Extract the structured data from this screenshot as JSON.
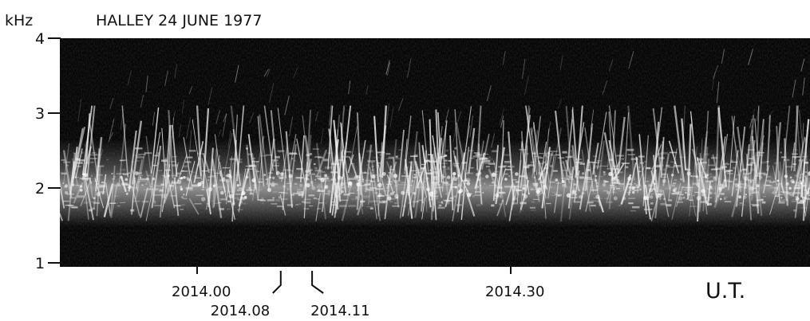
{
  "chart_data": {
    "type": "heatmap",
    "title": "HALLEY 24 JUNE 1977",
    "ylabel": "kHz",
    "xlabel": "U.T.",
    "ylim": [
      1,
      4
    ],
    "y_ticks": [
      {
        "value": 4,
        "label": "4"
      },
      {
        "value": 3,
        "label": "3"
      },
      {
        "value": 2,
        "label": "2"
      },
      {
        "value": 1,
        "label": "1"
      }
    ],
    "x_ticks": [
      {
        "value": 0,
        "label": "2014.00",
        "style": "straight"
      },
      {
        "value": 8,
        "label": "2014.08",
        "style": "angled-left"
      },
      {
        "value": 11,
        "label": "2014.11",
        "style": "angled-right"
      },
      {
        "value": 30,
        "label": "2014.30",
        "style": "straight"
      }
    ],
    "colors": {
      "background": "#050505",
      "emission": "#f2f2f2",
      "ink": "#111111"
    }
  }
}
